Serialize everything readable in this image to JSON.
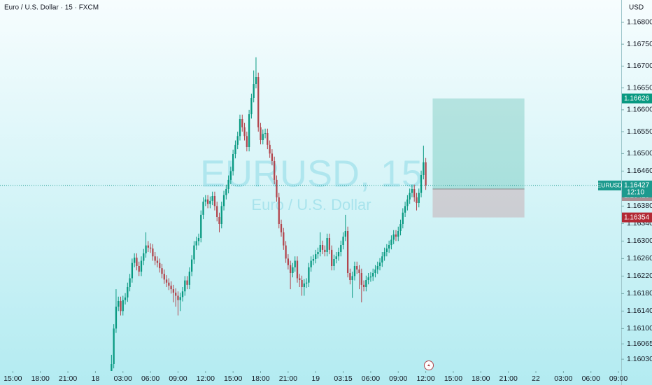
{
  "chart_data": {
    "type": "candlestick",
    "title": "Euro / U.S. Dollar · 15 · FXCM",
    "watermark": "EURUSD, 15",
    "watermark_subtitle": "Euro / U.S. Dollar",
    "currency": "USD",
    "up_color": "#089981",
    "down_color": "#b2454d",
    "ylim": [
      1.16003,
      1.16851
    ],
    "yticks": [
      {
        "value": 1.168,
        "label": "1.16800"
      },
      {
        "value": 1.1675,
        "label": "1.16750"
      },
      {
        "value": 1.167,
        "label": "1.16700"
      },
      {
        "value": 1.1665,
        "label": "1.16650"
      },
      {
        "value": 1.166,
        "label": "1.16600"
      },
      {
        "value": 1.1655,
        "label": "1.16550"
      },
      {
        "value": 1.165,
        "label": "1.16500"
      },
      {
        "value": 1.1646,
        "label": "1.16460"
      },
      {
        "value": 1.1638,
        "label": "1.16380"
      },
      {
        "value": 1.1634,
        "label": "1.16340"
      },
      {
        "value": 1.163,
        "label": "1.16300"
      },
      {
        "value": 1.1626,
        "label": "1.16260"
      },
      {
        "value": 1.1622,
        "label": "1.16220"
      },
      {
        "value": 1.1618,
        "label": "1.16180"
      },
      {
        "value": 1.1614,
        "label": "1.16140"
      },
      {
        "value": 1.161,
        "label": "1.16100"
      },
      {
        "value": 1.16065,
        "label": "1.16065"
      },
      {
        "value": 1.1603,
        "label": "1.16030"
      }
    ],
    "xlim": [
      -29.6,
      241.2
    ],
    "xticks": [
      {
        "value": -24,
        "label": "15:00"
      },
      {
        "value": -12,
        "label": "18:00"
      },
      {
        "value": 0,
        "label": "21:00"
      },
      {
        "value": 12,
        "label": "18"
      },
      {
        "value": 24,
        "label": "03:00"
      },
      {
        "value": 36,
        "label": "06:00"
      },
      {
        "value": 48,
        "label": "09:00"
      },
      {
        "value": 60,
        "label": "12:00"
      },
      {
        "value": 72,
        "label": "15:00"
      },
      {
        "value": 84,
        "label": "18:00"
      },
      {
        "value": 96,
        "label": "21:00"
      },
      {
        "value": 108,
        "label": "19"
      },
      {
        "value": 120,
        "label": "03:15"
      },
      {
        "value": 132,
        "label": "06:00"
      },
      {
        "value": 144,
        "label": "09:00"
      },
      {
        "value": 156,
        "label": "12:00"
      },
      {
        "value": 168,
        "label": "15:00"
      },
      {
        "value": 180,
        "label": "18:00"
      },
      {
        "value": 192,
        "label": "21:00"
      },
      {
        "value": 204,
        "label": "22"
      },
      {
        "value": 216,
        "label": "03:00"
      },
      {
        "value": 228,
        "label": "06:00"
      },
      {
        "value": 240,
        "label": "09:00"
      }
    ],
    "x": [
      19,
      20,
      21,
      22,
      23,
      24,
      25,
      26,
      27,
      28,
      29,
      30,
      31,
      32,
      33,
      34,
      35,
      36,
      37,
      38,
      39,
      40,
      41,
      42,
      43,
      44,
      45,
      46,
      47,
      48,
      49,
      50,
      51,
      52,
      53,
      54,
      55,
      56,
      57,
      58,
      59,
      60,
      61,
      62,
      63,
      64,
      65,
      66,
      67,
      68,
      69,
      70,
      71,
      72,
      73,
      74,
      75,
      76,
      77,
      78,
      79,
      80,
      81,
      82,
      83,
      84,
      85,
      86,
      87,
      88,
      89,
      90,
      91,
      92,
      93,
      94,
      95,
      96,
      97,
      98,
      99,
      100,
      101,
      102,
      103,
      104,
      105,
      106,
      107,
      108,
      109,
      110,
      111,
      112,
      113,
      114,
      115,
      116,
      117,
      118,
      119,
      120,
      121,
      122,
      123,
      124,
      125,
      126,
      127,
      128,
      129,
      130,
      131,
      132,
      133,
      134,
      135,
      136,
      137,
      138,
      139,
      140,
      141,
      142,
      143,
      144,
      145,
      146,
      147,
      148,
      149,
      150,
      151,
      152,
      153,
      154,
      155,
      156
    ],
    "open": [
      1.16,
      1.16019,
      1.161,
      1.1615,
      1.16163,
      1.1614,
      1.16165,
      1.16171,
      1.16195,
      1.16215,
      1.1625,
      1.16262,
      1.16243,
      1.1623,
      1.16255,
      1.16272,
      1.1629,
      1.16285,
      1.16283,
      1.16265,
      1.16255,
      1.1625,
      1.16238,
      1.16225,
      1.16212,
      1.16205,
      1.16198,
      1.1619,
      1.16182,
      1.16175,
      1.16165,
      1.16172,
      1.16185,
      1.1621,
      1.162,
      1.1623,
      1.16258,
      1.1629,
      1.163,
      1.16307,
      1.1636,
      1.1639,
      1.16395,
      1.16385,
      1.16392,
      1.16403,
      1.1638,
      1.16355,
      1.16339,
      1.1638,
      1.16405,
      1.16419,
      1.1644,
      1.1646,
      1.16499,
      1.1652,
      1.1654,
      1.16579,
      1.1656,
      1.1654,
      1.16515,
      1.1659,
      1.16627,
      1.16659,
      1.16675,
      1.1656,
      1.16531,
      1.16545,
      1.16547,
      1.1652,
      1.165,
      1.16483,
      1.1644,
      1.164,
      1.16339,
      1.1632,
      1.1629,
      1.1626,
      1.16245,
      1.16227,
      1.1624,
      1.16255,
      1.16215,
      1.16211,
      1.16195,
      1.16203,
      1.16205,
      1.1624,
      1.16255,
      1.16259,
      1.1627,
      1.16275,
      1.16291,
      1.1628,
      1.16275,
      1.16307,
      1.1628,
      1.16243,
      1.16259,
      1.16265,
      1.16275,
      1.16291,
      1.1631,
      1.16323,
      1.16227,
      1.16211,
      1.1622,
      1.16243,
      1.16235,
      1.16227,
      1.162,
      1.16195,
      1.16211,
      1.16217,
      1.16219,
      1.16227,
      1.16235,
      1.16243,
      1.16251,
      1.16265,
      1.16275,
      1.16283,
      1.16291,
      1.16303,
      1.16315,
      1.1631,
      1.16323,
      1.16339,
      1.16365,
      1.1638,
      1.16395,
      1.1641,
      1.16419,
      1.164,
      1.16387,
      1.1641,
      1.16451,
      1.1648
    ],
    "high": [
      1.1604,
      1.1611,
      1.1619,
      1.16173,
      1.16173,
      1.16175,
      1.16181,
      1.16205,
      1.16225,
      1.1626,
      1.16272,
      1.16272,
      1.16253,
      1.16265,
      1.16282,
      1.1632,
      1.163,
      1.16295,
      1.16293,
      1.16275,
      1.16265,
      1.1626,
      1.16248,
      1.16235,
      1.16222,
      1.16215,
      1.16208,
      1.162,
      1.16192,
      1.16185,
      1.16182,
      1.16195,
      1.1622,
      1.1622,
      1.1624,
      1.16268,
      1.163,
      1.1631,
      1.16317,
      1.1637,
      1.164,
      1.16405,
      1.16405,
      1.16402,
      1.16413,
      1.16413,
      1.1639,
      1.16365,
      1.1639,
      1.16415,
      1.16429,
      1.1645,
      1.1647,
      1.16509,
      1.1653,
      1.1655,
      1.16589,
      1.16589,
      1.1657,
      1.1655,
      1.166,
      1.16637,
      1.1669,
      1.1672,
      1.16685,
      1.1657,
      1.16555,
      1.16557,
      1.16557,
      1.1653,
      1.1651,
      1.16493,
      1.1645,
      1.1641,
      1.16349,
      1.1633,
      1.163,
      1.1627,
      1.16255,
      1.1625,
      1.16265,
      1.16265,
      1.16225,
      1.16221,
      1.16213,
      1.16215,
      1.1625,
      1.16265,
      1.16269,
      1.1628,
      1.16285,
      1.1632,
      1.16301,
      1.1629,
      1.16317,
      1.16317,
      1.1629,
      1.16269,
      1.16275,
      1.16285,
      1.16301,
      1.1632,
      1.1636,
      1.16333,
      1.16237,
      1.1623,
      1.16253,
      1.16253,
      1.16245,
      1.16237,
      1.1621,
      1.16221,
      1.16227,
      1.16229,
      1.16237,
      1.16245,
      1.16253,
      1.16261,
      1.16275,
      1.16285,
      1.16293,
      1.16301,
      1.16313,
      1.16325,
      1.16325,
      1.16333,
      1.16349,
      1.16375,
      1.1639,
      1.16405,
      1.1642,
      1.16429,
      1.16429,
      1.1641,
      1.1642,
      1.16461,
      1.16518,
      1.1649
    ],
    "low": [
      1.1599,
      1.16009,
      1.1609,
      1.1614,
      1.1613,
      1.1613,
      1.16155,
      1.16161,
      1.16185,
      1.16205,
      1.1624,
      1.16233,
      1.1622,
      1.1622,
      1.16245,
      1.16262,
      1.16275,
      1.16273,
      1.16255,
      1.16245,
      1.1624,
      1.16228,
      1.16215,
      1.16202,
      1.16195,
      1.16188,
      1.1618,
      1.1616,
      1.1615,
      1.1613,
      1.1614,
      1.16162,
      1.16175,
      1.1619,
      1.1619,
      1.1622,
      1.16248,
      1.1628,
      1.1629,
      1.16297,
      1.1635,
      1.1638,
      1.16375,
      1.16375,
      1.16382,
      1.1637,
      1.16345,
      1.1632,
      1.16329,
      1.1637,
      1.16395,
      1.16409,
      1.1643,
      1.1645,
      1.16489,
      1.1651,
      1.1653,
      1.1655,
      1.1653,
      1.16505,
      1.16505,
      1.1658,
      1.16617,
      1.16649,
      1.1655,
      1.16521,
      1.16521,
      1.16535,
      1.1651,
      1.1649,
      1.16473,
      1.1643,
      1.1639,
      1.16329,
      1.1631,
      1.1628,
      1.1625,
      1.16235,
      1.1619,
      1.16217,
      1.1623,
      1.16205,
      1.16195,
      1.16175,
      1.16175,
      1.16193,
      1.16195,
      1.1623,
      1.16245,
      1.16249,
      1.1626,
      1.16265,
      1.1627,
      1.16265,
      1.16265,
      1.1627,
      1.16233,
      1.16233,
      1.16249,
      1.16255,
      1.16265,
      1.16281,
      1.163,
      1.16217,
      1.16201,
      1.1617,
      1.1621,
      1.16225,
      1.1619,
      1.1616,
      1.16185,
      1.16185,
      1.16201,
      1.16207,
      1.16209,
      1.16217,
      1.16225,
      1.16233,
      1.16241,
      1.16255,
      1.16265,
      1.16273,
      1.16281,
      1.16293,
      1.163,
      1.163,
      1.16313,
      1.16329,
      1.16355,
      1.1637,
      1.16385,
      1.164,
      1.1639,
      1.1637,
      1.16377,
      1.164,
      1.16441,
      1.16417
    ],
    "close": [
      1.16019,
      1.161,
      1.1615,
      1.16163,
      1.1614,
      1.16165,
      1.16171,
      1.16195,
      1.16215,
      1.1625,
      1.16262,
      1.16243,
      1.1623,
      1.16255,
      1.16272,
      1.1629,
      1.16285,
      1.16283,
      1.16265,
      1.16255,
      1.1625,
      1.16238,
      1.16225,
      1.16212,
      1.16205,
      1.16198,
      1.1619,
      1.16182,
      1.16175,
      1.16165,
      1.16172,
      1.16185,
      1.1621,
      1.162,
      1.1623,
      1.16258,
      1.1629,
      1.163,
      1.16307,
      1.1636,
      1.1639,
      1.16395,
      1.16385,
      1.16392,
      1.16403,
      1.1638,
      1.16355,
      1.16339,
      1.1638,
      1.16405,
      1.16419,
      1.1644,
      1.1646,
      1.16499,
      1.1652,
      1.1654,
      1.16579,
      1.1656,
      1.1654,
      1.16515,
      1.1659,
      1.16627,
      1.16659,
      1.16675,
      1.1656,
      1.16531,
      1.16545,
      1.16547,
      1.1652,
      1.165,
      1.16483,
      1.1644,
      1.164,
      1.16339,
      1.1632,
      1.1629,
      1.1626,
      1.16245,
      1.16227,
      1.1624,
      1.16255,
      1.16215,
      1.16211,
      1.16195,
      1.16203,
      1.16205,
      1.1624,
      1.16255,
      1.16259,
      1.1627,
      1.16275,
      1.16291,
      1.1628,
      1.16275,
      1.16307,
      1.1628,
      1.16243,
      1.16259,
      1.16265,
      1.16275,
      1.16291,
      1.1631,
      1.16323,
      1.16227,
      1.16211,
      1.1622,
      1.16243,
      1.16235,
      1.16227,
      1.162,
      1.16195,
      1.16211,
      1.16217,
      1.16219,
      1.16227,
      1.16235,
      1.16243,
      1.16251,
      1.16265,
      1.16275,
      1.16283,
      1.16291,
      1.16303,
      1.16315,
      1.1631,
      1.16323,
      1.16339,
      1.16365,
      1.1638,
      1.16395,
      1.1641,
      1.16419,
      1.164,
      1.16387,
      1.1641,
      1.16451,
      1.1648,
      1.16427
    ],
    "last": {
      "symbol": "EURUSD",
      "price": 1.16427,
      "countdown": "12:10",
      "color": "#1c9a8e"
    },
    "position": {
      "entry": 1.16419,
      "target": 1.16626,
      "stop": 1.16354,
      "start": 159,
      "end": 199,
      "target_color": "#089981",
      "stop_color": "#b22833",
      "entry_color": "#a98e93"
    }
  }
}
